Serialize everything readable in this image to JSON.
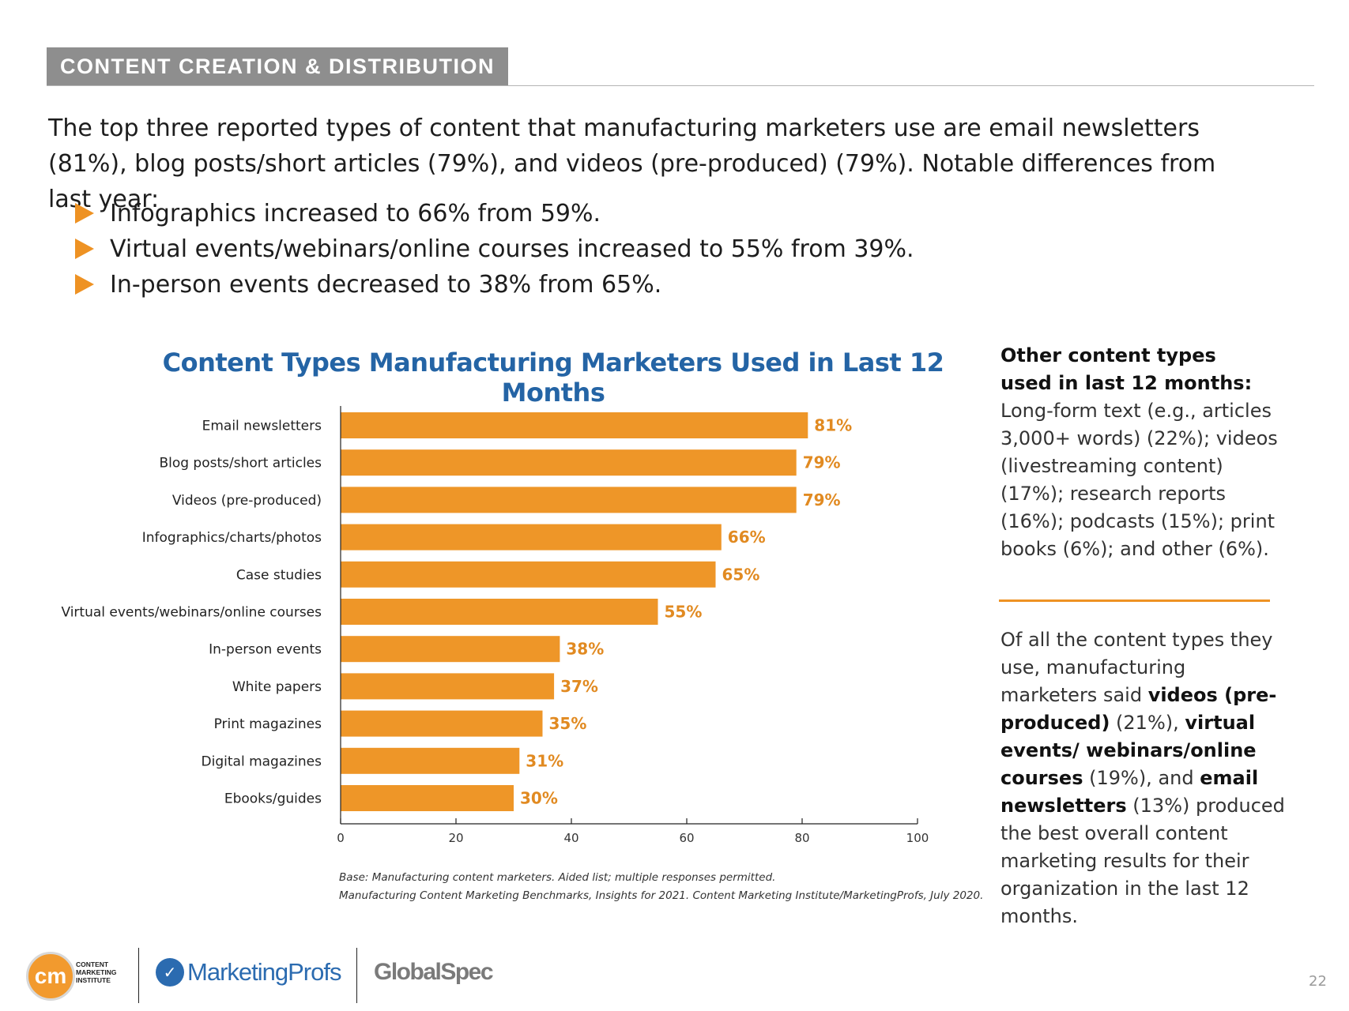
{
  "section_tag": "CONTENT CREATION & DISTRIBUTION",
  "intro": "The top three reported types of content that manufacturing marketers use are email newsletters (81%), blog posts/short articles (79%), and videos (pre-produced) (79%). Notable differences from last year:",
  "bullets": [
    "Infographics increased to 66% from 59%.",
    "Virtual events/webinars/online courses increased to 55% from 39%.",
    "In-person events decreased to 38% from 65%."
  ],
  "chart_data": {
    "type": "bar",
    "orientation": "horizontal",
    "title": "Content Types Manufacturing Marketers Used in Last 12 Months",
    "categories": [
      "Email newsletters",
      "Blog posts/short articles",
      "Videos (pre-produced)",
      "Infographics/charts/photos",
      "Case studies",
      "Virtual events/webinars/online courses",
      "In-person events",
      "White papers",
      "Print magazines",
      "Digital magazines",
      "Ebooks/guides"
    ],
    "values": [
      81,
      79,
      79,
      66,
      65,
      55,
      38,
      37,
      35,
      31,
      30
    ],
    "value_labels": [
      "81%",
      "79%",
      "79%",
      "66%",
      "65%",
      "55%",
      "38%",
      "37%",
      "35%",
      "31%",
      "30%"
    ],
    "xlim": [
      0,
      100
    ],
    "xticks": [
      0,
      20,
      40,
      60,
      80,
      100
    ],
    "xtick_labels": [
      "0",
      "20",
      "40",
      "60",
      "80",
      "100"
    ],
    "xlabel": "",
    "ylabel": "",
    "grid": false,
    "bar_color": "#ee9628",
    "label_color": "#e18a21"
  },
  "source": {
    "base": "Base: Manufacturing content marketers. Aided list; multiple responses permitted.",
    "citation": "Manufacturing Content Marketing Benchmarks, Insights for 2021. Content Marketing Institute/MarketingProfs, July 2020."
  },
  "sidebar": {
    "other_heading_1": "Other content types",
    "other_heading_2": "used in last 12 months:",
    "other_body": "Long-form text (e.g., articles 3,000+ words) (22%); videos (livestreaming content) (17%); research reports (16%); podcasts (15%); print books (6%); and other (6%).",
    "best_p1": "Of all the content types they use, manufacturing marketers said ",
    "best_b1": "videos (pre-produced)",
    "best_p2": " (21%), ",
    "best_b2": "virtual events/ webinars/online courses",
    "best_p3": " (19%), and ",
    "best_b3": "email newsletters",
    "best_p4": " (13%) produced the best overall content marketing results for their organization in the last 12 months."
  },
  "footer": {
    "cmi_mark": "cm",
    "cmi_name": "CONTENT MARKETING INSTITUTE",
    "marketingprofs": "MarketingProfs",
    "globalspec": "GlobalSpec",
    "page_number": "22"
  }
}
